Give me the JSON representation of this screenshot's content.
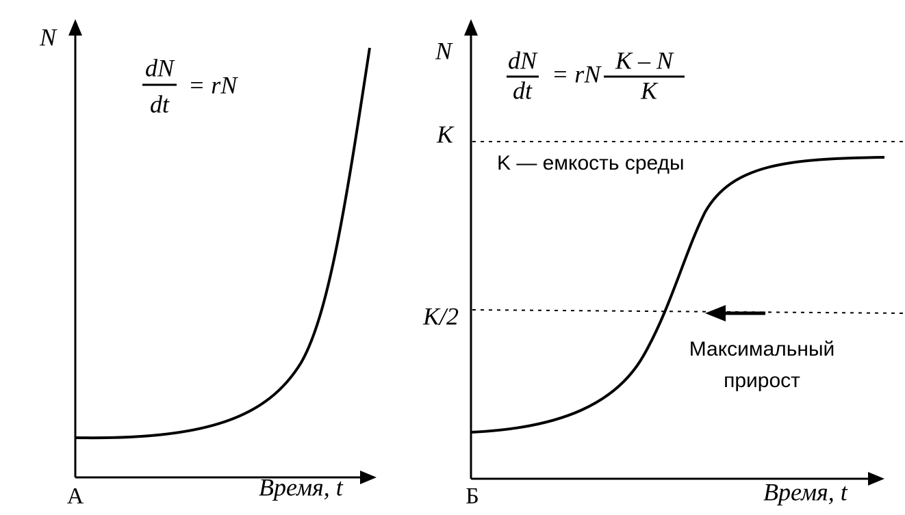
{
  "panels": [
    {
      "label": "А",
      "y_axis": "N",
      "x_axis": "Время, t",
      "formula": {
        "numerator": "dN",
        "denominator": "dt",
        "rhs": "= rN"
      }
    },
    {
      "label": "Б",
      "y_axis": "N",
      "x_axis": "Время, t",
      "formula": {
        "numerator": "dN",
        "denominator": "dt",
        "rhs": "= rN",
        "rhs_numerator": "K – N",
        "rhs_denominator": "K"
      },
      "levels": [
        "K",
        "K/2"
      ],
      "capacity_note": "K — емкость среды",
      "max_growth": [
        "Максимальный",
        "прирост"
      ]
    }
  ]
}
